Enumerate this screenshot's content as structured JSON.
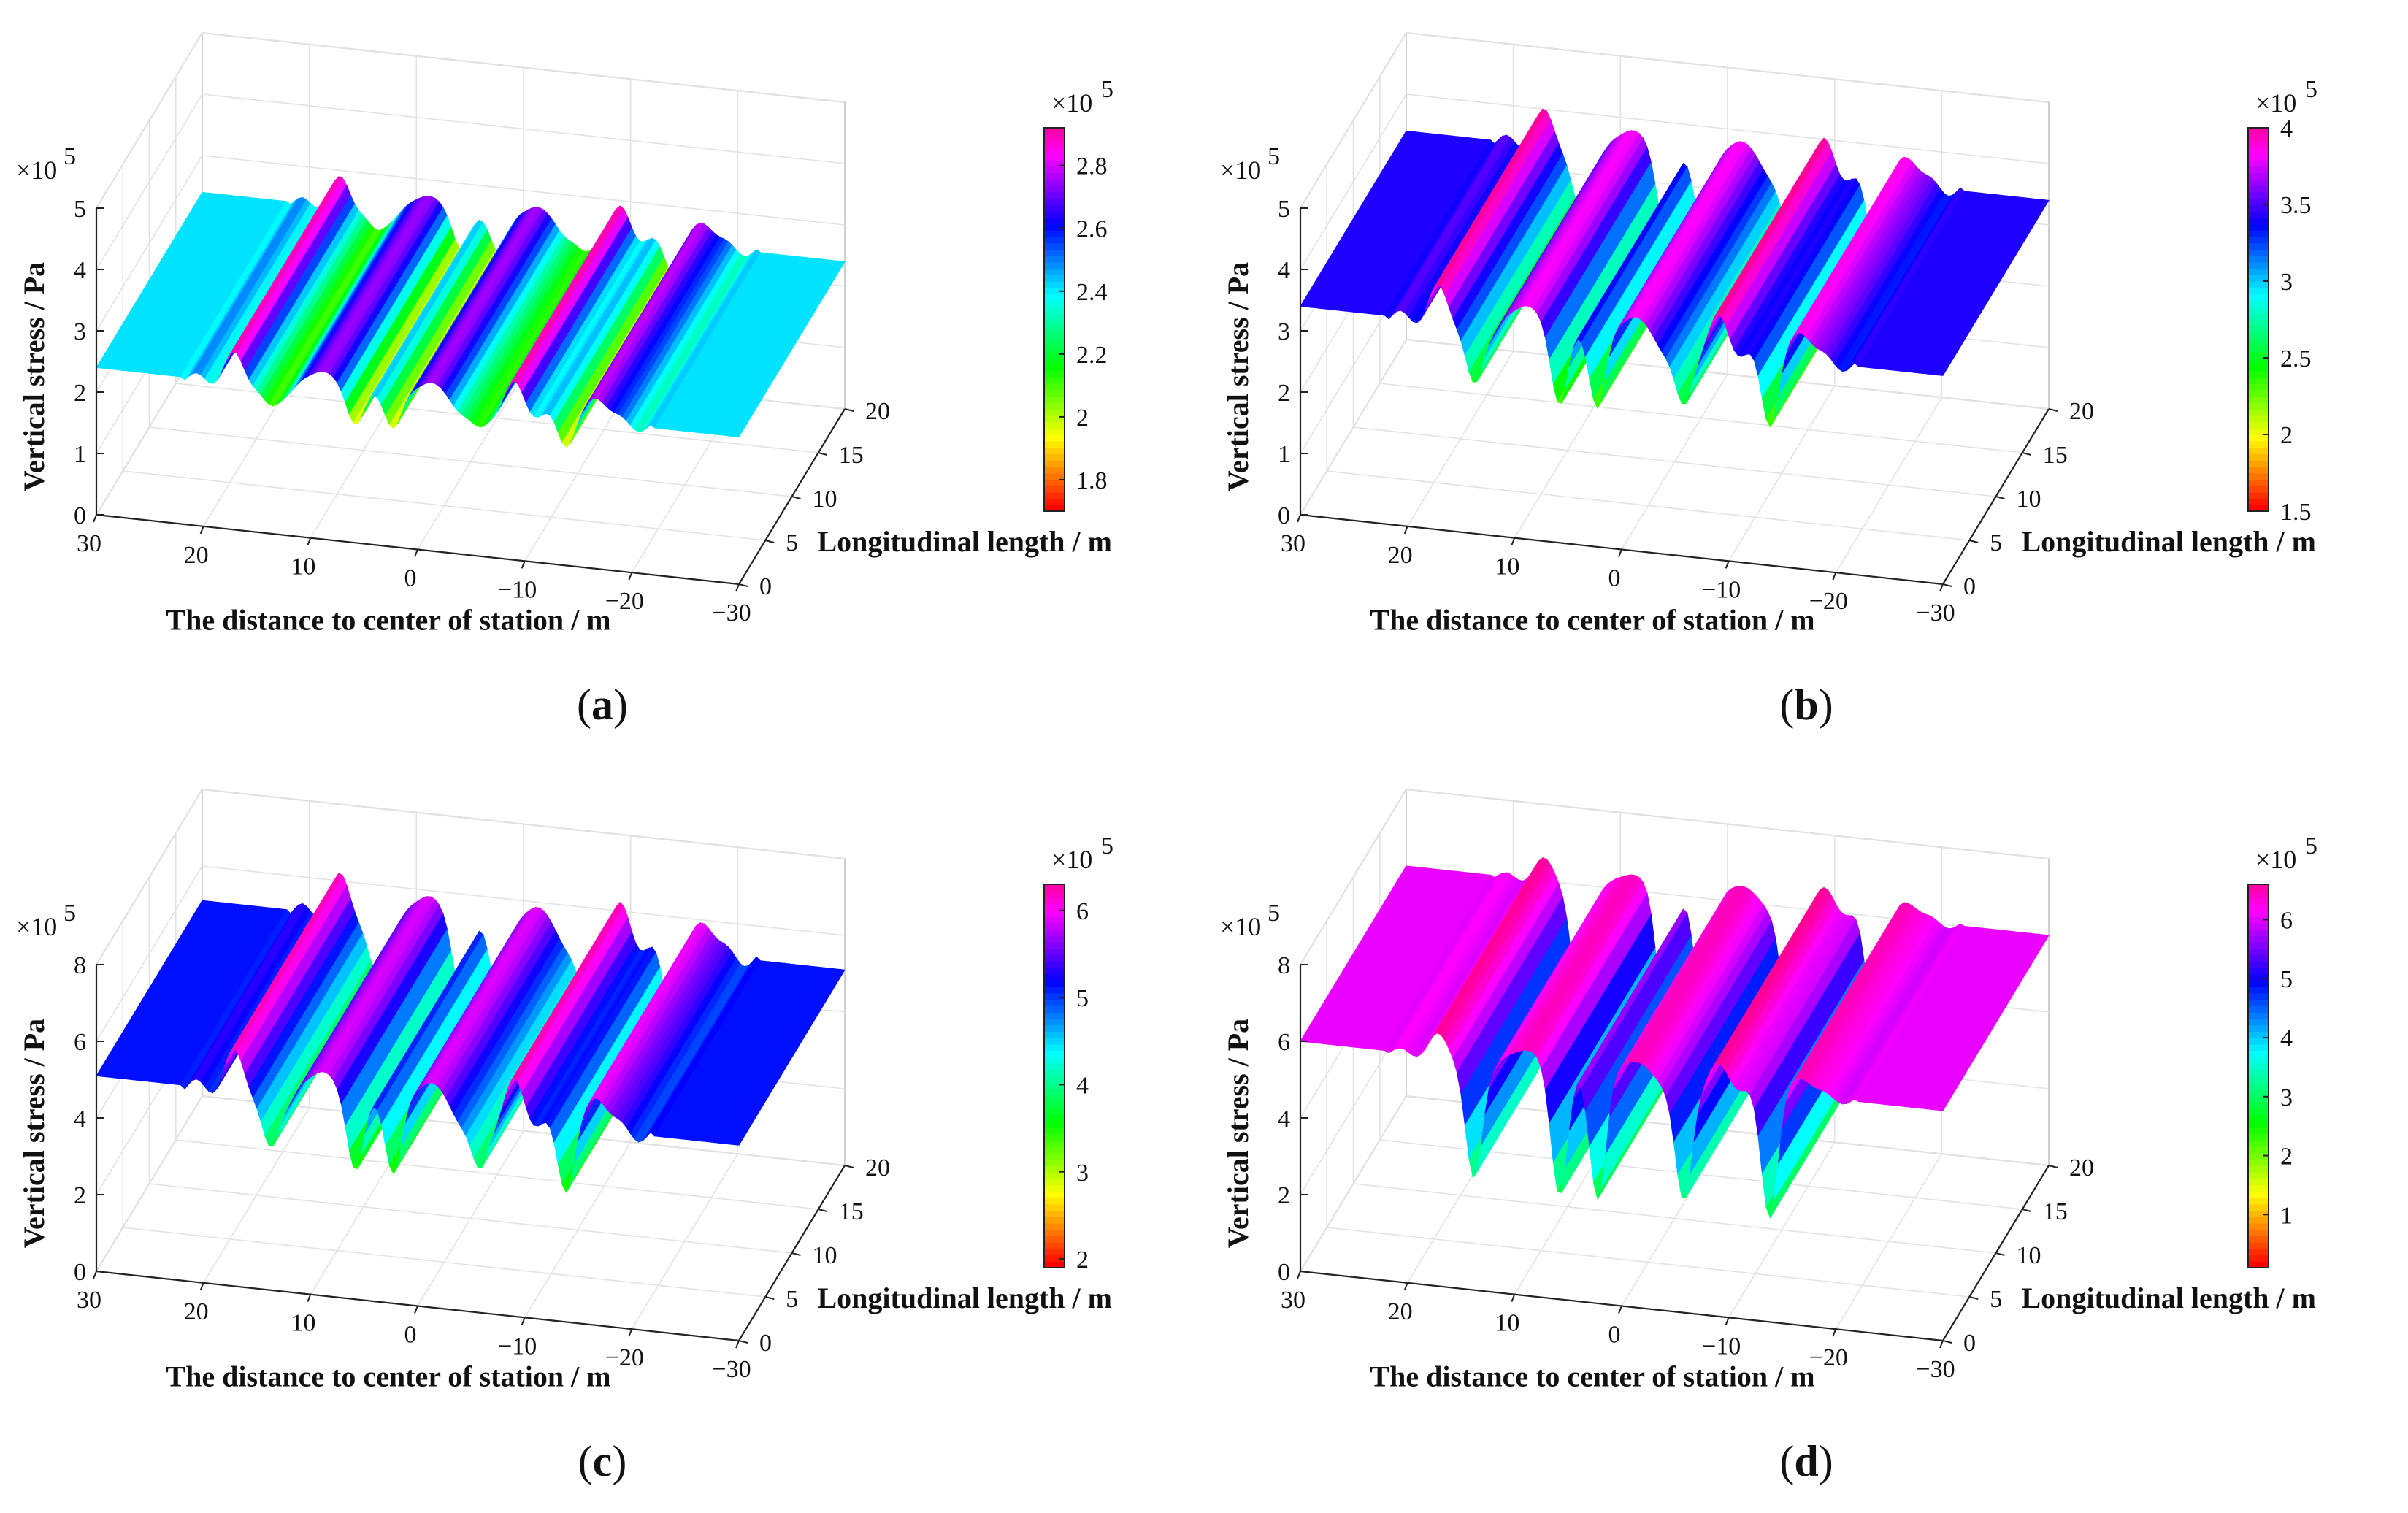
{
  "figure": {
    "panels": [
      {
        "id": "a",
        "caption_letter": "a"
      },
      {
        "id": "b",
        "caption_letter": "b"
      },
      {
        "id": "c",
        "caption_letter": "c"
      },
      {
        "id": "d",
        "caption_letter": "d"
      }
    ]
  },
  "chart_data": [
    {
      "panel": "a",
      "type": "surface",
      "title": "",
      "xlabel": "The distance to center of station / m",
      "ylabel": "Longitudinal length / m",
      "zlabel": "Vertical stress / Pa",
      "z_multiplier": "×10",
      "z_multiplier_exp": "5",
      "x_ticks": [
        "30",
        "20",
        "10",
        "0",
        "−10",
        "−20",
        "−30"
      ],
      "y_ticks": [
        "0",
        "5",
        "10",
        "15",
        "20"
      ],
      "z_ticks": [
        "0",
        "1",
        "2",
        "3",
        "4",
        "5"
      ],
      "xlim": [
        30,
        -30
      ],
      "ylim": [
        0,
        20
      ],
      "zlim": [
        0,
        5
      ],
      "colorbar": {
        "multiplier": "×10",
        "exp": "5",
        "ticks": [
          "1.8",
          "2",
          "2.2",
          "2.4",
          "2.6",
          "2.8"
        ],
        "range": [
          1.7,
          2.92
        ]
      },
      "series": {
        "baseline": 2.4,
        "crest_positions": [
          17,
          9,
          -1,
          -9,
          -17
        ],
        "peak_max": 2.9,
        "trough_min": 1.7
      }
    },
    {
      "panel": "b",
      "type": "surface",
      "title": "",
      "xlabel": "The distance to center of station / m",
      "ylabel": "Longitudinal length / m",
      "zlabel": "Vertical stress / Pa",
      "z_multiplier": "×10",
      "z_multiplier_exp": "5",
      "x_ticks": [
        "30",
        "20",
        "10",
        "0",
        "−10",
        "−20",
        "−30"
      ],
      "y_ticks": [
        "0",
        "5",
        "10",
        "15",
        "20"
      ],
      "z_ticks": [
        "0",
        "1",
        "2",
        "3",
        "4",
        "5"
      ],
      "xlim": [
        30,
        -30
      ],
      "ylim": [
        0,
        20
      ],
      "zlim": [
        0,
        5
      ],
      "colorbar": {
        "multiplier": "×10",
        "exp": "5",
        "ticks": [
          "1.5",
          "2",
          "2.5",
          "3",
          "3.5",
          "4"
        ],
        "range": [
          1.5,
          4.0
        ]
      },
      "series": {
        "baseline": 3.4,
        "crest_positions": [
          17,
          9,
          -1,
          -9,
          -17
        ],
        "peak_max": 4.0,
        "trough_min": 1.5
      }
    },
    {
      "panel": "c",
      "type": "surface",
      "title": "",
      "xlabel": "The distance to center of station / m",
      "ylabel": "Longitudinal length / m",
      "zlabel": "Vertical stress / Pa",
      "z_multiplier": "×10",
      "z_multiplier_exp": "5",
      "x_ticks": [
        "30",
        "20",
        "10",
        "0",
        "−10",
        "−20",
        "−30"
      ],
      "y_ticks": [
        "0",
        "5",
        "10",
        "15",
        "20"
      ],
      "z_ticks": [
        "0",
        "2",
        "4",
        "6",
        "8"
      ],
      "xlim": [
        30,
        -30
      ],
      "ylim": [
        0,
        20
      ],
      "zlim": [
        0,
        8
      ],
      "colorbar": {
        "multiplier": "×10",
        "exp": "5",
        "ticks": [
          "2",
          "3",
          "4",
          "5",
          "6"
        ],
        "range": [
          1.9,
          6.3
        ]
      },
      "series": {
        "baseline": 5.1,
        "crest_positions": [
          17,
          9,
          -1,
          -9,
          -17
        ],
        "peak_max": 6.2,
        "trough_min": 2.3
      }
    },
    {
      "panel": "d",
      "type": "surface",
      "title": "",
      "xlabel": "The distance to center of station / m",
      "ylabel": "Longitudinal length / m",
      "zlabel": "Vertical stress / Pa",
      "z_multiplier": "×10",
      "z_multiplier_exp": "5",
      "x_ticks": [
        "30",
        "20",
        "10",
        "0",
        "−10",
        "−20",
        "−30"
      ],
      "y_ticks": [
        "0",
        "5",
        "10",
        "15",
        "20"
      ],
      "z_ticks": [
        "0",
        "2",
        "4",
        "6",
        "8"
      ],
      "xlim": [
        30,
        -30
      ],
      "ylim": [
        0,
        20
      ],
      "zlim": [
        0,
        8
      ],
      "colorbar": {
        "multiplier": "×10",
        "exp": "5",
        "ticks": [
          "1",
          "2",
          "3",
          "4",
          "5",
          "6"
        ],
        "range": [
          0.1,
          6.6
        ]
      },
      "series": {
        "baseline": 6.0,
        "crest_positions": [
          17,
          9,
          -1,
          -9,
          -17
        ],
        "peak_max": 6.6,
        "trough_min": 0.2
      }
    }
  ]
}
